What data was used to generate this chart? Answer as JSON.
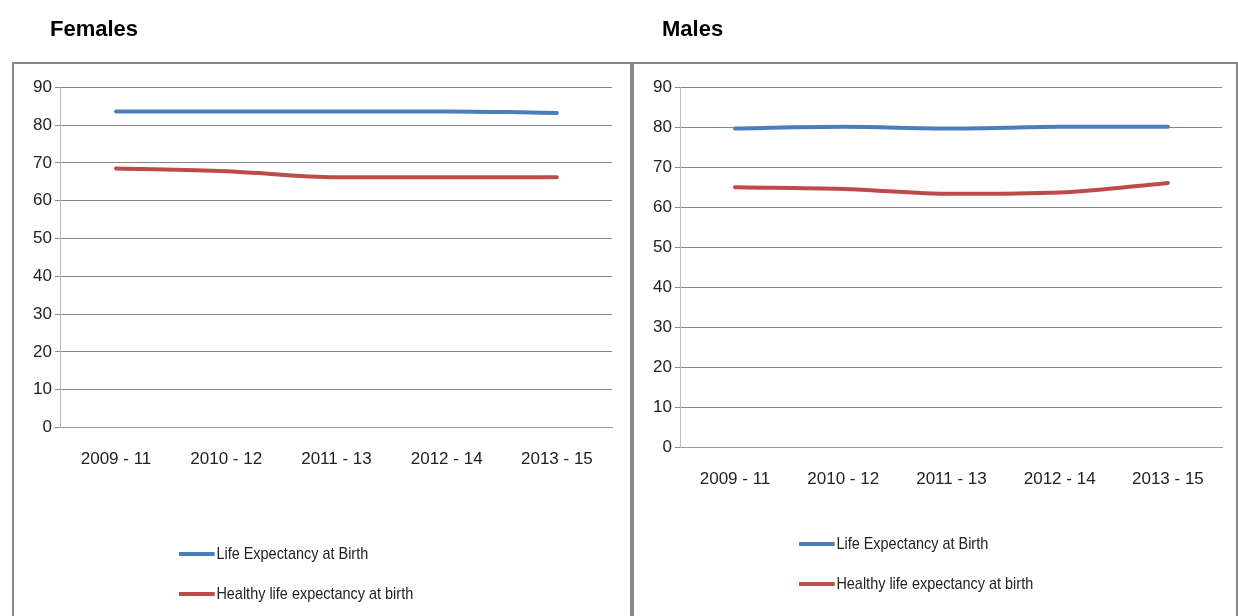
{
  "chart_data": [
    {
      "type": "line",
      "title": "Females",
      "categories": [
        "2009 - 11",
        "2010 - 12",
        "2011 - 13",
        "2012 - 14",
        "2013 - 15"
      ],
      "series": [
        {
          "name": "Life Expectancy at Birth",
          "color": "#4a7ebb",
          "values": [
            83.6,
            83.6,
            83.6,
            83.6,
            83.2
          ]
        },
        {
          "name": "Healthy life expectancy at birth",
          "color": "#be4b48",
          "values": [
            68.5,
            67.8,
            66.2,
            66.2,
            66.2
          ]
        }
      ],
      "ylim": [
        0,
        90
      ],
      "yticks": [
        0,
        10,
        20,
        30,
        40,
        50,
        60,
        70,
        80,
        90
      ],
      "grid": "y",
      "legend": "bottom",
      "marker": "none",
      "line_style": "solid"
    },
    {
      "type": "line",
      "title": "Males",
      "categories": [
        "2009 - 11",
        "2010 - 12",
        "2011 - 13",
        "2012 - 14",
        "2013 - 15"
      ],
      "series": [
        {
          "name": "Life Expectancy at Birth",
          "color": "#4a7ebb",
          "values": [
            79.7,
            80.1,
            79.7,
            80.1,
            80.1
          ]
        },
        {
          "name": "Healthy life expectancy at birth",
          "color": "#be4b48",
          "values": [
            65.0,
            64.6,
            63.4,
            63.7,
            66.1
          ]
        }
      ],
      "ylim": [
        0,
        90
      ],
      "yticks": [
        0,
        10,
        20,
        30,
        40,
        50,
        60,
        70,
        80,
        90
      ],
      "grid": "y",
      "legend": "bottom",
      "marker": "none",
      "line_style": "solid"
    }
  ]
}
